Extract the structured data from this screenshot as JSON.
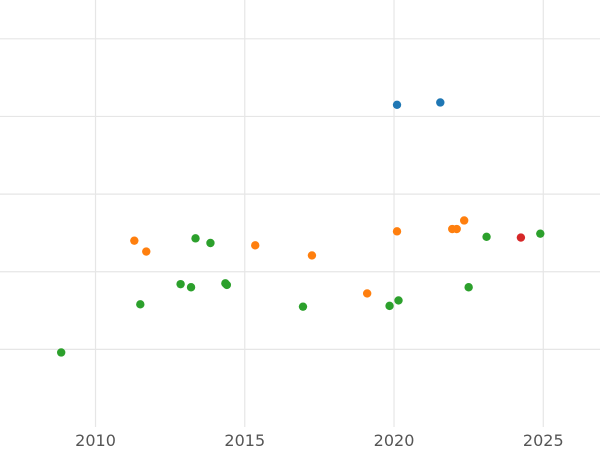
{
  "chart_data": {
    "type": "scatter",
    "title": "",
    "xlabel": "",
    "ylabel": "",
    "xlim": [
      2006.8,
      2026.9
    ],
    "ylim": [
      -3.0,
      2.5
    ],
    "x_ticks": [
      2010,
      2015,
      2020,
      2025
    ],
    "x_tick_labels": [
      "2010",
      "2015",
      "2020",
      "2025"
    ],
    "y_gridlines": [
      -2.0,
      -1.0,
      0.0,
      1.0,
      2.0
    ],
    "grid": true,
    "legend": "none",
    "series": [
      {
        "color": "#1f77b4",
        "points": [
          {
            "x": 2020.1,
            "y": 1.15
          },
          {
            "x": 2021.55,
            "y": 1.18
          }
        ]
      },
      {
        "color": "#ff7f0e",
        "points": [
          {
            "x": 2011.3,
            "y": -0.6
          },
          {
            "x": 2011.7,
            "y": -0.74
          },
          {
            "x": 2015.35,
            "y": -0.66
          },
          {
            "x": 2017.25,
            "y": -0.79
          },
          {
            "x": 2019.1,
            "y": -1.28
          },
          {
            "x": 2020.1,
            "y": -0.48
          },
          {
            "x": 2021.95,
            "y": -0.45
          },
          {
            "x": 2022.1,
            "y": -0.45
          },
          {
            "x": 2022.35,
            "y": -0.34
          }
        ]
      },
      {
        "color": "#2ca02c",
        "points": [
          {
            "x": 2008.85,
            "y": -2.04
          },
          {
            "x": 2011.5,
            "y": -1.42
          },
          {
            "x": 2012.85,
            "y": -1.16
          },
          {
            "x": 2013.2,
            "y": -1.2
          },
          {
            "x": 2013.35,
            "y": -0.57
          },
          {
            "x": 2013.85,
            "y": -0.63
          },
          {
            "x": 2014.35,
            "y": -1.15
          },
          {
            "x": 2014.4,
            "y": -1.17
          },
          {
            "x": 2016.95,
            "y": -1.45
          },
          {
            "x": 2019.85,
            "y": -1.44
          },
          {
            "x": 2020.15,
            "y": -1.37
          },
          {
            "x": 2022.5,
            "y": -1.2
          },
          {
            "x": 2023.1,
            "y": -0.55
          },
          {
            "x": 2024.9,
            "y": -0.51
          }
        ]
      },
      {
        "color": "#d62728",
        "points": [
          {
            "x": 2024.25,
            "y": -0.56
          }
        ]
      }
    ]
  }
}
